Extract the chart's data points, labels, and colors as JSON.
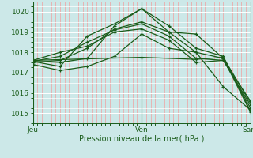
{
  "bg_color": "#cce8e8",
  "grid_color_major": "#ffffff",
  "grid_color_minor": "#f0a0a0",
  "line_color": "#1a5c1a",
  "ylim": [
    1014.5,
    1020.5
  ],
  "yticks": [
    1015,
    1016,
    1017,
    1018,
    1019,
    1020
  ],
  "xtick_labels": [
    "Jeu",
    "Ven",
    "Sam"
  ],
  "xtick_positions": [
    0,
    48,
    96
  ],
  "xlabel": "Pression niveau de la mer( hPa )",
  "lines": [
    [
      0,
      1017.55,
      12,
      1017.5,
      24,
      1017.7,
      36,
      1019.3,
      48,
      1020.15,
      60,
      1019.3,
      72,
      1018.2,
      84,
      1017.8,
      96,
      1015.1
    ],
    [
      0,
      1017.5,
      12,
      1017.6,
      24,
      1018.2,
      36,
      1019.15,
      48,
      1019.5,
      60,
      1019.0,
      72,
      1018.0,
      84,
      1017.7,
      96,
      1015.25
    ],
    [
      0,
      1017.55,
      12,
      1017.8,
      24,
      1018.5,
      36,
      1019.1,
      48,
      1019.4,
      60,
      1018.8,
      72,
      1017.7,
      84,
      1017.6,
      96,
      1015.4
    ],
    [
      0,
      1017.6,
      12,
      1018.0,
      24,
      1018.3,
      36,
      1019.0,
      48,
      1019.15,
      60,
      1018.6,
      72,
      1017.5,
      84,
      1017.6,
      96,
      1015.6
    ],
    [
      0,
      1017.55,
      12,
      1017.3,
      24,
      1018.8,
      36,
      1019.4,
      48,
      1020.15,
      60,
      1019.0,
      72,
      1018.9,
      84,
      1017.7,
      96,
      1015.05
    ],
    [
      0,
      1017.6,
      48,
      1017.75,
      72,
      1017.65,
      84,
      1017.75,
      96,
      1015.5
    ],
    [
      0,
      1017.4,
      12,
      1017.1,
      24,
      1017.3,
      36,
      1017.8,
      48,
      1018.9,
      60,
      1018.2,
      72,
      1018.0,
      84,
      1016.3,
      96,
      1015.15
    ]
  ]
}
